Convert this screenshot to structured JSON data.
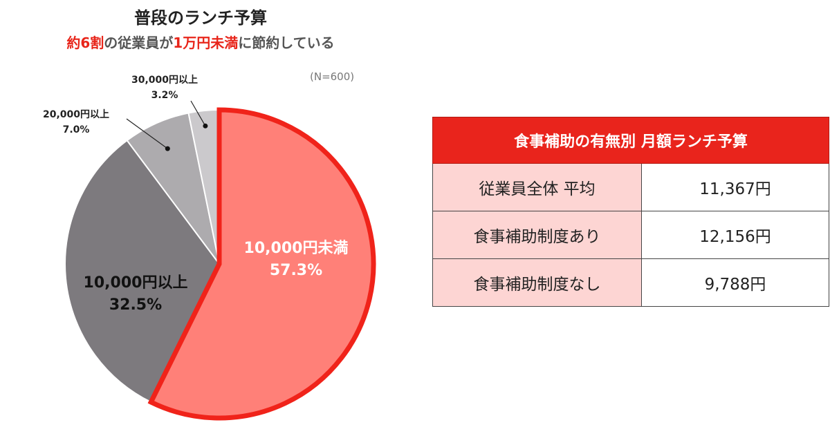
{
  "header": {
    "title": "普段のランチ予算",
    "subtitle_parts": [
      "約6割",
      "の従業員が",
      "1万円未満",
      "に節約している"
    ],
    "sample_note": "(N=600)"
  },
  "chart_data": {
    "type": "pie",
    "slices": [
      {
        "label": "10,000円未満",
        "percent_label": "57.3%",
        "value": 57.3,
        "color": "#ff8078",
        "highlight": true
      },
      {
        "label": "10,000円以上",
        "percent_label": "32.5%",
        "value": 32.5,
        "color": "#7d7a7e"
      },
      {
        "label": "20,000円以上",
        "percent_label": "7.0%",
        "value": 7.0,
        "color": "#adabae"
      },
      {
        "label": "30,000円以上",
        "percent_label": "3.2%",
        "value": 3.2,
        "color": "#cbc9cc"
      }
    ],
    "highlight_stroke": "#f0231a",
    "start": "12 o'clock, clockwise"
  },
  "table": {
    "header": "食事補助の有無別 月額ランチ予算",
    "rows": [
      {
        "label": "従業員全体 平均",
        "value": "11,367円"
      },
      {
        "label": "食事補助制度あり",
        "value": "12,156円"
      },
      {
        "label": "食事補助制度なし",
        "value": "9,788円"
      }
    ],
    "header_color": "#e9241c",
    "label_bg": "#fdd5d3"
  }
}
